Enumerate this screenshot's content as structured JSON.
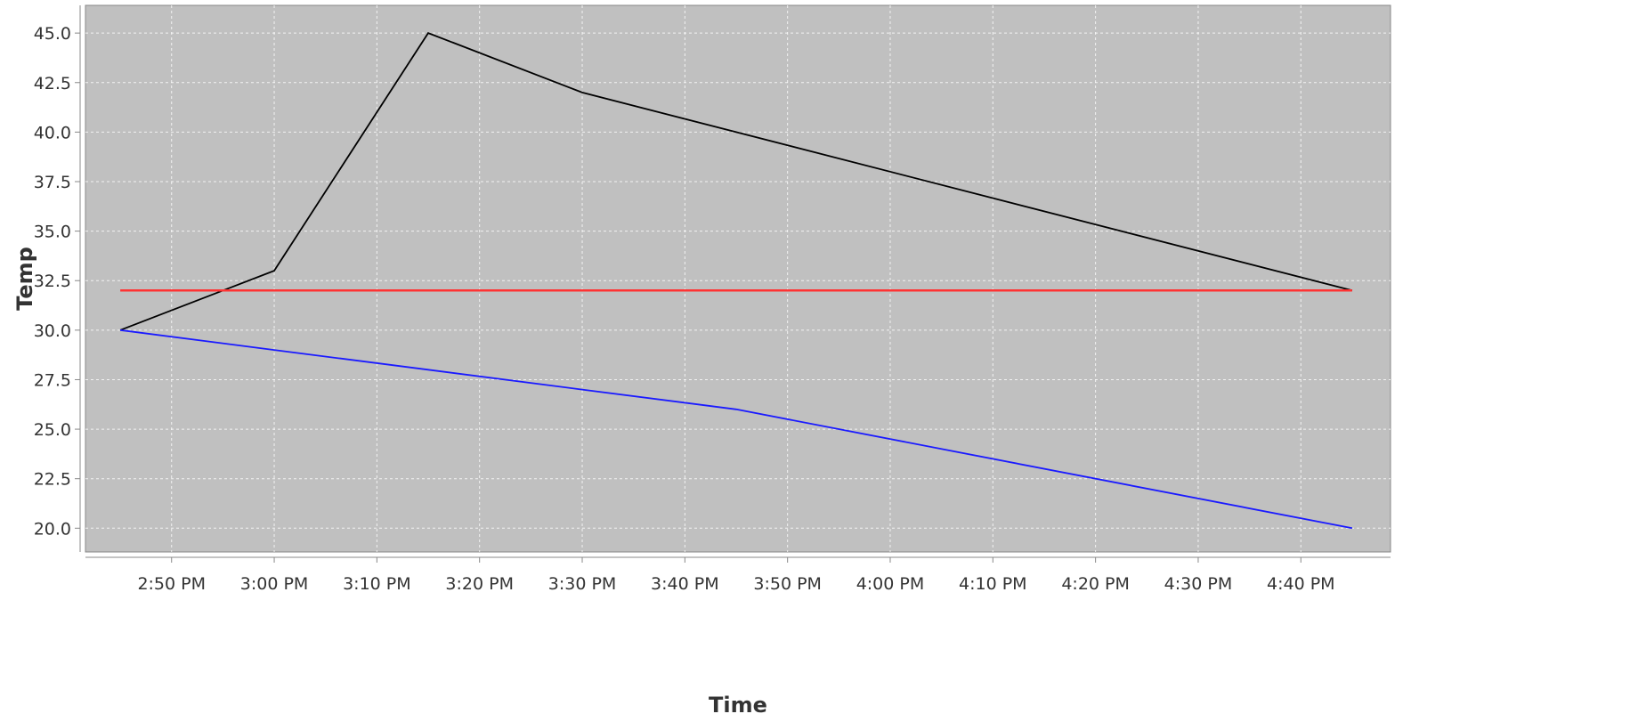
{
  "chart_data": {
    "type": "line",
    "xlabel": "Time",
    "ylabel": "Temp",
    "xlim": [
      "2:43 PM",
      "4:47 PM"
    ],
    "ylim": [
      18.8,
      46.4
    ],
    "grid": true,
    "legend": "none",
    "x_ticks": [
      "2:50 PM",
      "3:00 PM",
      "3:10 PM",
      "3:20 PM",
      "3:30 PM",
      "3:40 PM",
      "3:50 PM",
      "4:00 PM",
      "4:10 PM",
      "4:20 PM",
      "4:30 PM",
      "4:40 PM"
    ],
    "y_ticks": [
      "20.0",
      "22.5",
      "25.0",
      "27.5",
      "30.0",
      "32.5",
      "35.0",
      "37.5",
      "40.0",
      "42.5",
      "45.0"
    ],
    "series": [
      {
        "color": "#000000",
        "x": [
          "2:45 PM",
          "3:00 PM",
          "3:15 PM",
          "3:30 PM",
          "3:45 PM",
          "4:45 PM"
        ],
        "y": [
          30.0,
          33.0,
          45.0,
          42.0,
          40.0,
          32.0
        ]
      },
      {
        "color": "#ff3333",
        "x": [
          "2:45 PM",
          "4:45 PM"
        ],
        "y": [
          32.0,
          32.0
        ]
      },
      {
        "color": "#1a1aff",
        "x": [
          "2:45 PM",
          "3:00 PM",
          "3:15 PM",
          "3:30 PM",
          "3:45 PM",
          "4:45 PM"
        ],
        "y": [
          30.0,
          29.0,
          28.0,
          27.0,
          26.0,
          20.0
        ]
      }
    ],
    "colors": {
      "plot_background": "#c0c0c0",
      "gridline": "#ffffff",
      "axis": "#888888"
    }
  }
}
